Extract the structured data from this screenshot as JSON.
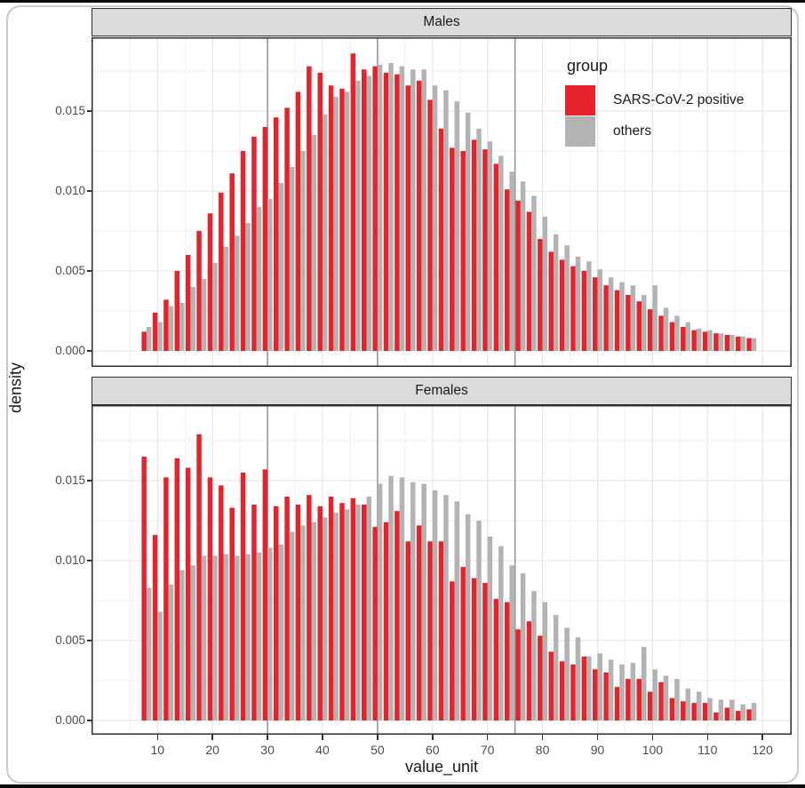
{
  "figure": {
    "y_axis_title": "density",
    "x_axis_title": "value_unit",
    "facets": [
      "Males",
      "Females"
    ],
    "y_tick_labels": [
      "0.000",
      "0.005",
      "0.010",
      "0.015"
    ],
    "y_tick_values": [
      0,
      0.005,
      0.01,
      0.015
    ],
    "x_ticks": [
      10,
      20,
      30,
      40,
      50,
      60,
      70,
      80,
      90,
      100,
      110,
      120
    ],
    "reference_lines_x": [
      30,
      50,
      75
    ],
    "legend": {
      "title": "group",
      "items": [
        {
          "label": "SARS-CoV-2 positive",
          "color": "#e8222a"
        },
        {
          "label": "others",
          "color": "#b3b3b3"
        }
      ]
    },
    "colors": {
      "positive": "#e8222a",
      "others": "#b3b3b3",
      "strip_bg": "#dbdbdb",
      "panel_border": "#2f2f2f",
      "grid_major": "#e4e4e4",
      "grid_minor": "#f1f1f1",
      "reference_line": "#999999",
      "tick_text": "#4d4d4d"
    }
  },
  "chart_data": [
    {
      "type": "bar",
      "title": "Males",
      "xlabel": "value_unit",
      "ylabel": "density",
      "binwidth": 2,
      "position": "dodge",
      "xlim": [
        -2,
        125.3
      ],
      "ylim": [
        0,
        0.0196
      ],
      "grid": true,
      "legend_position": "inside-top-right",
      "x": [
        8,
        10,
        12,
        14,
        16,
        18,
        20,
        22,
        24,
        26,
        28,
        30,
        32,
        34,
        36,
        38,
        40,
        42,
        44,
        46,
        48,
        50,
        52,
        54,
        56,
        58,
        60,
        62,
        64,
        66,
        68,
        70,
        72,
        74,
        76,
        78,
        80,
        82,
        84,
        86,
        88,
        90,
        92,
        94,
        96,
        98,
        100,
        102,
        104,
        106,
        108,
        110,
        112,
        114,
        116,
        118
      ],
      "series": [
        {
          "name": "SARS-CoV-2 positive",
          "color": "#e8222a",
          "values": [
            0.0012,
            0.0024,
            0.0032,
            0.005,
            0.006,
            0.0075,
            0.0086,
            0.0099,
            0.0111,
            0.0125,
            0.0134,
            0.014,
            0.0146,
            0.0152,
            0.0162,
            0.0178,
            0.0174,
            0.0166,
            0.0164,
            0.0186,
            0.0176,
            0.0178,
            0.0174,
            0.0173,
            0.0166,
            0.0169,
            0.0157,
            0.0139,
            0.0127,
            0.0125,
            0.0132,
            0.0126,
            0.0117,
            0.0101,
            0.0094,
            0.0087,
            0.007,
            0.0062,
            0.0057,
            0.0053,
            0.005,
            0.0046,
            0.0041,
            0.0038,
            0.0035,
            0.0031,
            0.0026,
            0.0022,
            0.0018,
            0.0015,
            0.0013,
            0.0012,
            0.0011,
            0.001,
            0.0009,
            0.0008
          ]
        },
        {
          "name": "others",
          "color": "#b3b3b3",
          "values": [
            0.0015,
            0.0018,
            0.0028,
            0.003,
            0.004,
            0.0045,
            0.0055,
            0.0065,
            0.0072,
            0.008,
            0.009,
            0.0095,
            0.0105,
            0.0115,
            0.0125,
            0.0135,
            0.0148,
            0.0159,
            0.0162,
            0.0169,
            0.0172,
            0.0179,
            0.018,
            0.0178,
            0.0176,
            0.0176,
            0.0166,
            0.0163,
            0.0156,
            0.0149,
            0.0139,
            0.0131,
            0.0122,
            0.0112,
            0.0106,
            0.0097,
            0.0084,
            0.0073,
            0.0066,
            0.0059,
            0.0056,
            0.0051,
            0.0046,
            0.0043,
            0.0041,
            0.0035,
            0.0041,
            0.0027,
            0.0022,
            0.0018,
            0.0014,
            0.0013,
            0.0011,
            0.001,
            0.0009,
            0.0008
          ]
        }
      ]
    },
    {
      "type": "bar",
      "title": "Females",
      "xlabel": "value_unit",
      "ylabel": "density",
      "binwidth": 2,
      "position": "dodge",
      "xlim": [
        -2,
        125.3
      ],
      "ylim": [
        0,
        0.0196
      ],
      "grid": true,
      "legend_position": "none",
      "x": [
        8,
        10,
        12,
        14,
        16,
        18,
        20,
        22,
        24,
        26,
        28,
        30,
        32,
        34,
        36,
        38,
        40,
        42,
        44,
        46,
        48,
        50,
        52,
        54,
        56,
        58,
        60,
        62,
        64,
        66,
        68,
        70,
        72,
        74,
        76,
        78,
        80,
        82,
        84,
        86,
        88,
        90,
        92,
        94,
        96,
        98,
        100,
        102,
        104,
        106,
        108,
        110,
        112,
        114,
        116,
        118
      ],
      "series": [
        {
          "name": "SARS-CoV-2 positive",
          "color": "#e8222a",
          "values": [
            0.0165,
            0.0116,
            0.0152,
            0.0164,
            0.0158,
            0.0179,
            0.0152,
            0.0147,
            0.0133,
            0.0155,
            0.0135,
            0.0157,
            0.0134,
            0.014,
            0.0135,
            0.0141,
            0.0134,
            0.014,
            0.0136,
            0.0139,
            0.0135,
            0.0121,
            0.0124,
            0.0131,
            0.0112,
            0.0122,
            0.0112,
            0.0112,
            0.0087,
            0.0096,
            0.0089,
            0.0086,
            0.0076,
            0.0074,
            0.0057,
            0.0062,
            0.0053,
            0.0043,
            0.0037,
            0.0035,
            0.004,
            0.0032,
            0.003,
            0.0021,
            0.0026,
            0.0026,
            0.0018,
            0.0024,
            0.0014,
            0.0012,
            0.0011,
            0.0011,
            0.0005,
            0.0008,
            0.0006,
            0.0007
          ]
        },
        {
          "name": "others",
          "color": "#b3b3b3",
          "values": [
            0.0083,
            0.0068,
            0.0085,
            0.0094,
            0.0097,
            0.0103,
            0.0103,
            0.0104,
            0.0103,
            0.0104,
            0.0105,
            0.0108,
            0.011,
            0.0118,
            0.0122,
            0.0124,
            0.0127,
            0.013,
            0.0132,
            0.0135,
            0.014,
            0.0148,
            0.0153,
            0.0152,
            0.0149,
            0.0148,
            0.0144,
            0.0141,
            0.0137,
            0.0129,
            0.0125,
            0.0115,
            0.0109,
            0.0097,
            0.0092,
            0.0081,
            0.0074,
            0.0066,
            0.0058,
            0.0052,
            0.004,
            0.0042,
            0.0038,
            0.0035,
            0.0036,
            0.0046,
            0.0032,
            0.0028,
            0.0026,
            0.002,
            0.0018,
            0.0014,
            0.0013,
            0.0013,
            0.001,
            0.0011
          ]
        }
      ]
    }
  ]
}
